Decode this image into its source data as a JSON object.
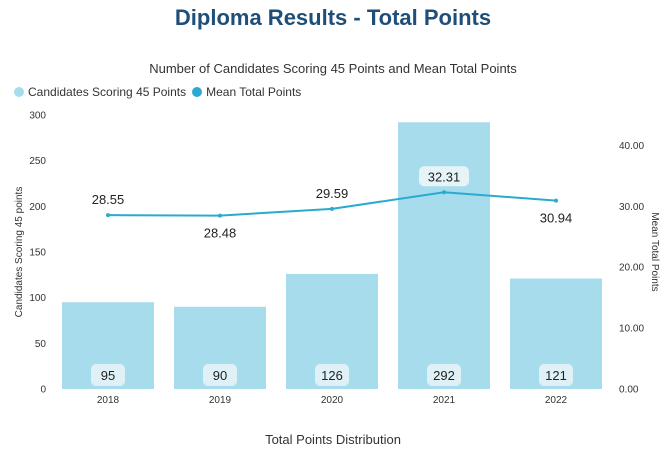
{
  "title": "Diploma Results - Total Points",
  "chart_data": {
    "type": "bar",
    "title": "Number of Candidates Scoring 45 Points and Mean Total Points",
    "categories": [
      "2018",
      "2019",
      "2020",
      "2021",
      "2022"
    ],
    "series": [
      {
        "name": "Candidates Scoring 45 Points",
        "type": "bar",
        "axis": "left",
        "values": [
          95,
          90,
          126,
          292,
          121
        ],
        "color": "#a6dcec"
      },
      {
        "name": "Mean Total Points",
        "type": "line",
        "axis": "right",
        "values": [
          28.55,
          28.48,
          29.59,
          32.31,
          30.94
        ],
        "color": "#29abd0"
      }
    ],
    "xlabel": "Total Points Distribution",
    "ylabel": "Candidates Scoring 45 points",
    "y2label": "Mean Total Points",
    "ylim": [
      0,
      300
    ],
    "y2lim": [
      0,
      45
    ],
    "yticks": [
      "0",
      "50",
      "100",
      "150",
      "200",
      "250",
      "300"
    ],
    "y2ticks": [
      "0.00",
      "10.00",
      "20.00",
      "30.00",
      "40.00"
    ],
    "legend": "top-left",
    "grid": false
  }
}
